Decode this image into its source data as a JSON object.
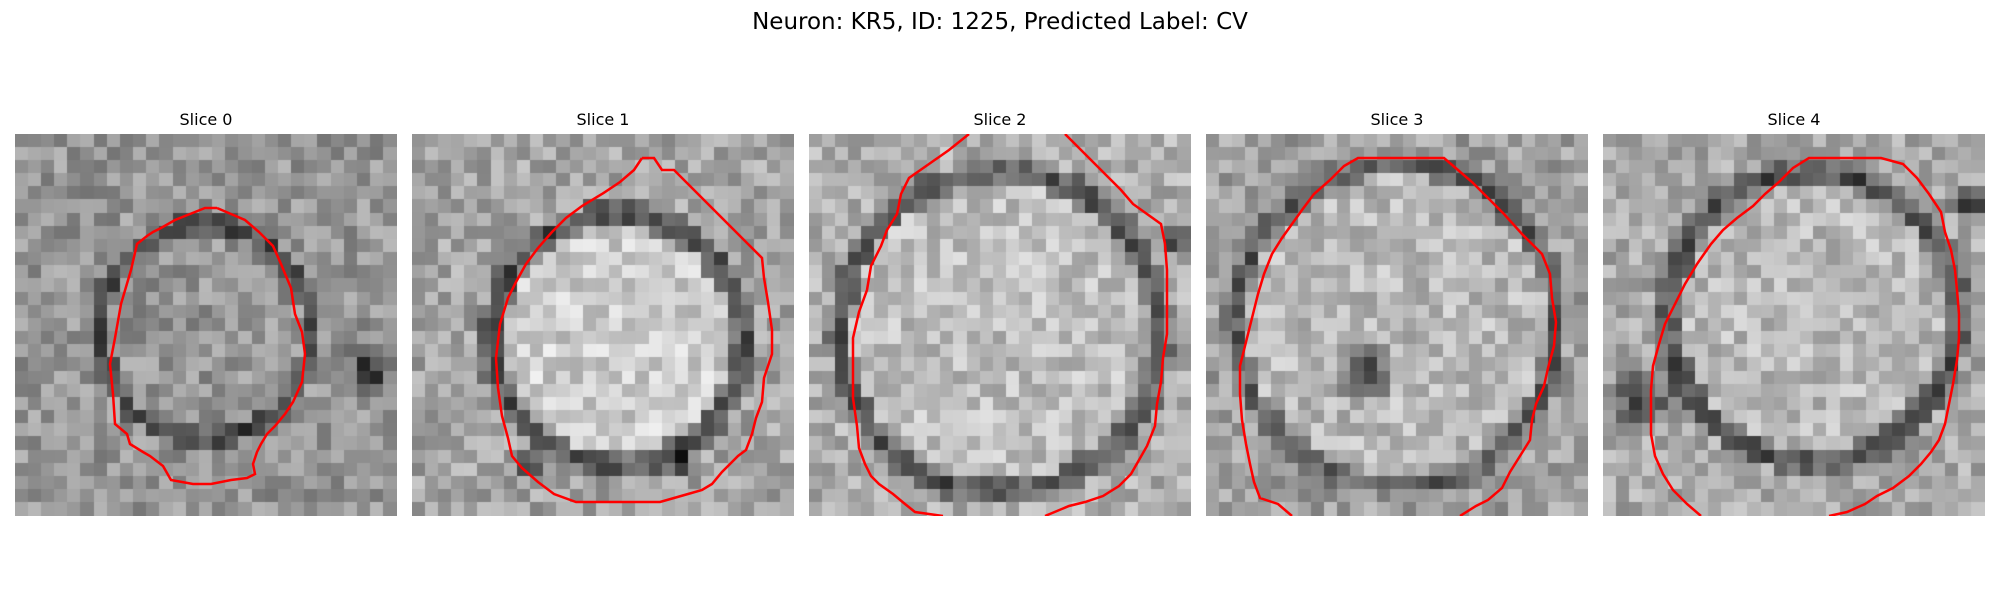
{
  "figure": {
    "title": "Neuron: KR5, ID: 1225, Predicted Label: CV"
  },
  "slices": [
    {
      "title": "Slice 0",
      "image_description": "Grayscale microscopy patch with a faint roughly circular cell outlined by red contour; darker region on the right edge."
    },
    {
      "title": "Slice 1",
      "image_description": "Grayscale microscopy patch with a bright circular cell body surrounded by a dark ring; red contour around the cell."
    },
    {
      "title": "Slice 2",
      "image_description": "Grayscale microscopy patch with a large bright cell filling most of the frame; red contour partially leaving the frame."
    },
    {
      "title": "Slice 3",
      "image_description": "Grayscale microscopy patch with a bright cell body and a dark spot near the center-left; red contour."
    },
    {
      "title": "Slice 4",
      "image_description": "Grayscale microscopy patch with a cell bounded by darker regions on the left and bottom; red contour."
    }
  ],
  "contour_color": "#ff0000"
}
